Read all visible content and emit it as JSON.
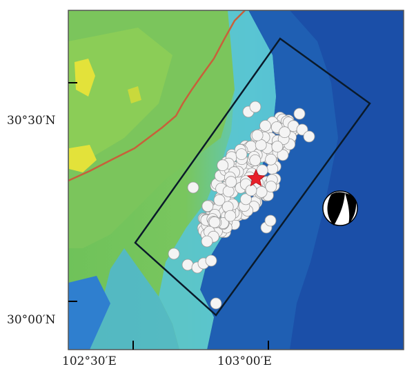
{
  "map": {
    "axes": {
      "lat_labels": [
        "30°30′N",
        "30°00′N"
      ],
      "lon_labels": [
        "102°30′E",
        "103°00′E"
      ]
    },
    "colors": {
      "relief_high": "#6fc25a",
      "relief_mid": "#5cc8c8",
      "relief_low": "#1f5fb3",
      "boundary_line": "#c8603a",
      "rectangle": "#0a1a2a",
      "aftershock": "#f4f4f4",
      "epicenter": "#e8202a"
    },
    "layers": [
      "shaded-relief-background",
      "provincial-boundary-line",
      "fault-plane-rectangle",
      "aftershock-circles",
      "epicenter-star",
      "focal-mechanism-beachball"
    ]
  }
}
